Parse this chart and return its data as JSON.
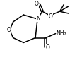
{
  "background_color": "#ffffff",
  "figsize": [
    1.09,
    0.85
  ],
  "dpi": 100,
  "line_width": 1.1,
  "color": "#000000",
  "label_O_ring": "O",
  "label_N": "N",
  "label_O_ester": "O",
  "label_NH2": "NH₂",
  "label_O_carbonyl_top": "O",
  "label_O_amide": "O"
}
